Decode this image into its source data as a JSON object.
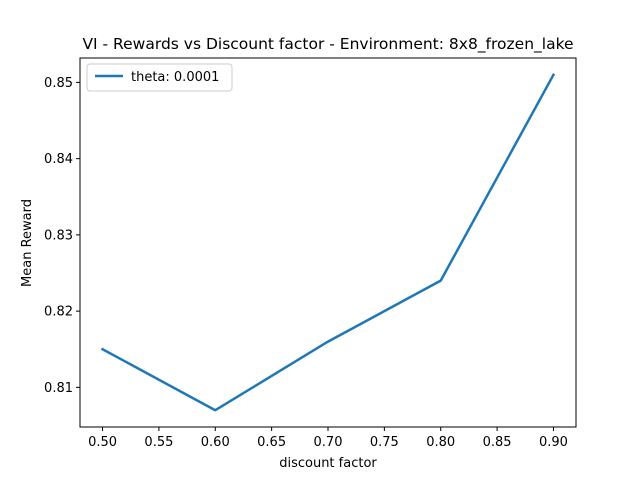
{
  "chart_data": {
    "type": "line",
    "title": "VI - Rewards vs Discount factor - Environment: 8x8_frozen_lake",
    "xlabel": "discount factor",
    "ylabel": "Mean Reward",
    "x": [
      0.5,
      0.6,
      0.7,
      0.8,
      0.9
    ],
    "series": [
      {
        "name": "theta: 0.0001",
        "values": [
          0.815,
          0.807,
          0.816,
          0.824,
          0.851
        ],
        "color": "#1f77b4"
      }
    ],
    "xlim": [
      0.48,
      0.92
    ],
    "ylim": [
      0.8048,
      0.8532
    ],
    "xticks": [
      "0.50",
      "0.55",
      "0.60",
      "0.65",
      "0.70",
      "0.75",
      "0.80",
      "0.85",
      "0.90"
    ],
    "yticks": [
      "0.81",
      "0.82",
      "0.83",
      "0.84",
      "0.85"
    ],
    "grid": false,
    "legend_position": "top-left"
  }
}
